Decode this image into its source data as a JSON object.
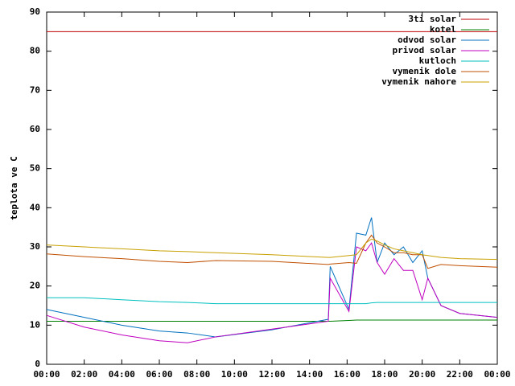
{
  "chart_data": {
    "type": "line",
    "ylabel": "teplota ve C",
    "x": [
      0,
      2,
      4,
      6,
      7.5,
      9,
      12,
      15,
      15.1,
      16.1,
      16.5,
      17,
      17.3,
      17.6,
      18,
      18.5,
      19,
      19.5,
      20,
      20.3,
      21,
      22,
      24
    ],
    "xlim": [
      0,
      24
    ],
    "xticks": [
      {
        "value": 0,
        "label": "00:00"
      },
      {
        "value": 2,
        "label": "02:00"
      },
      {
        "value": 4,
        "label": "04:00"
      },
      {
        "value": 6,
        "label": "06:00"
      },
      {
        "value": 8,
        "label": "08:00"
      },
      {
        "value": 10,
        "label": "10:00"
      },
      {
        "value": 12,
        "label": "12:00"
      },
      {
        "value": 14,
        "label": "14:00"
      },
      {
        "value": 16,
        "label": "16:00"
      },
      {
        "value": 18,
        "label": "18:00"
      },
      {
        "value": 20,
        "label": "20:00"
      },
      {
        "value": 22,
        "label": "22:00"
      },
      {
        "value": 24,
        "label": "00:00"
      }
    ],
    "ylim": [
      0,
      90
    ],
    "yticks": [
      0,
      10,
      20,
      30,
      40,
      50,
      60,
      70,
      80,
      90
    ],
    "grid": false,
    "legend": "top-right",
    "series": [
      {
        "name": "3ti solar",
        "color": "#c00000",
        "values": [
          85,
          85,
          85,
          85,
          85,
          85,
          85,
          85,
          85,
          85,
          85,
          85,
          85,
          85,
          85,
          85,
          85,
          85,
          85,
          85,
          85,
          85,
          85
        ]
      },
      {
        "name": "kotel",
        "color": "#008000",
        "values": [
          11,
          11,
          11,
          11,
          11,
          11,
          11,
          11,
          11,
          11.2,
          11.3,
          11.3,
          11.3,
          11.3,
          11.3,
          11.3,
          11.3,
          11.3,
          11.3,
          11.3,
          11.3,
          11.3,
          11.3
        ]
      },
      {
        "name": "odvod solar",
        "color": "#0070c0",
        "values": [
          14,
          12,
          10,
          8.5,
          8,
          7,
          8.8,
          11.5,
          25,
          14,
          33.5,
          33,
          37.5,
          26,
          31,
          28,
          30,
          26,
          29,
          22,
          15,
          13,
          12
        ]
      },
      {
        "name": "privod solar",
        "color": "#c000c0",
        "values": [
          12.5,
          9.5,
          7.5,
          6,
          5.5,
          7,
          9,
          11,
          22,
          13.5,
          30,
          29,
          31,
          26,
          23,
          27,
          24,
          24,
          16.5,
          22,
          15,
          13,
          12
        ]
      },
      {
        "name": "kutloch",
        "color": "#00c0c0",
        "values": [
          17,
          17,
          16.5,
          16,
          15.8,
          15.5,
          15.5,
          15.5,
          15.5,
          15.5,
          15.5,
          15.5,
          15.7,
          15.8,
          15.8,
          15.8,
          15.8,
          15.8,
          15.8,
          15.8,
          15.8,
          15.8,
          15.8
        ]
      },
      {
        "name": "vymenik dole",
        "color": "#c05000",
        "values": [
          28.2,
          27.5,
          27,
          26.3,
          26,
          26.5,
          26.3,
          25.5,
          25.6,
          26,
          25.8,
          31,
          33,
          31,
          30,
          28.5,
          28.5,
          28,
          28,
          24.5,
          25.5,
          25.2,
          24.8
        ]
      },
      {
        "name": "vymenik nahore",
        "color": "#c8a000",
        "values": [
          30.5,
          30,
          29.5,
          29,
          28.8,
          28.5,
          28,
          27.3,
          27.3,
          27.8,
          28,
          31,
          32,
          31.5,
          30.5,
          29.5,
          29,
          28.5,
          28,
          27.8,
          27.3,
          27,
          26.8
        ]
      }
    ]
  }
}
